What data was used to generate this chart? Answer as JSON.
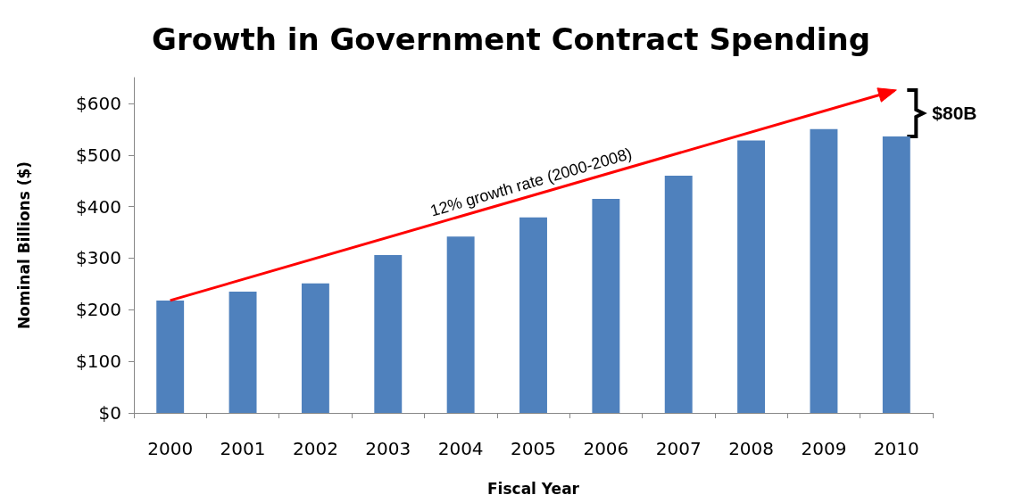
{
  "chart_data": {
    "type": "bar",
    "title": "Growth in Government Contract Spending",
    "xlabel": "Fiscal Year",
    "ylabel": "Nominal Billions ($)",
    "categories": [
      "2000",
      "2001",
      "2002",
      "2003",
      "2004",
      "2005",
      "2006",
      "2007",
      "2008",
      "2009",
      "2010"
    ],
    "series": [
      {
        "color": "#4f81bd",
        "values": [
          218,
          235,
          251,
          306,
          342,
          379,
          415,
          460,
          528,
          550,
          536
        ]
      }
    ],
    "ylim": [
      0,
      650
    ],
    "yticks": [
      {
        "value": 0,
        "label": "$0"
      },
      {
        "value": 100,
        "label": "$100"
      },
      {
        "value": 200,
        "label": "$200"
      },
      {
        "value": 300,
        "label": "$300"
      },
      {
        "value": 400,
        "label": "$400"
      },
      {
        "value": 500,
        "label": "$500"
      },
      {
        "value": 600,
        "label": "$600"
      }
    ],
    "annotations": [
      "12% growth rate (2000-2008)",
      "$80B"
    ],
    "grid": false
  }
}
